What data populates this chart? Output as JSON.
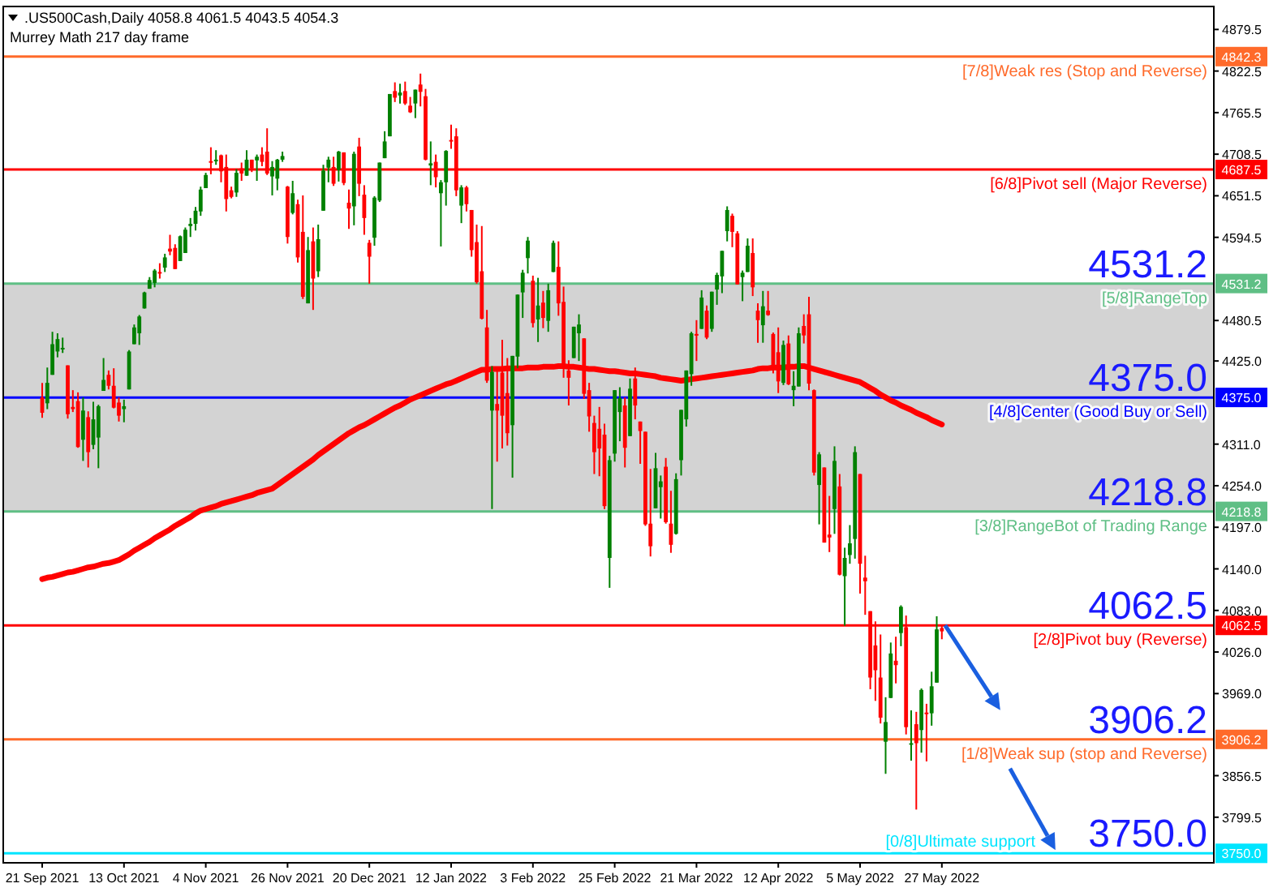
{
  "chart_data": {
    "type": "candlestick",
    "title": ".US500Cash,Daily 4058.8 4061.5 4043.5 4054.3",
    "subtitle": "Murrey Math 217 day frame",
    "categories": [
      "21 Sep 2021",
      null,
      null,
      null,
      null,
      null,
      null,
      null,
      null,
      null,
      null,
      null,
      null,
      null,
      null,
      null,
      "13 Oct 2021",
      null,
      null,
      null,
      null,
      null,
      null,
      null,
      null,
      null,
      null,
      null,
      null,
      null,
      null,
      null,
      "4 Nov 2021",
      null,
      null,
      null,
      null,
      null,
      null,
      null,
      null,
      null,
      null,
      null,
      null,
      null,
      null,
      null,
      "26 Nov 2021",
      null,
      null,
      null,
      null,
      null,
      null,
      null,
      null,
      null,
      null,
      null,
      null,
      null,
      null,
      null,
      "20 Dec 2021",
      null,
      null,
      null,
      null,
      null,
      null,
      null,
      null,
      null,
      null,
      null,
      null,
      null,
      null,
      null,
      "12 Jan 2022",
      null,
      null,
      null,
      null,
      null,
      null,
      null,
      null,
      null,
      null,
      null,
      null,
      null,
      null,
      null,
      "3 Feb 2022",
      null,
      null,
      null,
      null,
      null,
      null,
      null,
      null,
      null,
      null,
      null,
      null,
      null,
      null,
      null,
      "25 Feb 2022",
      null,
      null,
      null,
      null,
      null,
      null,
      null,
      null,
      null,
      null,
      null,
      null,
      null,
      null,
      null,
      "21 Mar 2022",
      null,
      null,
      null,
      null,
      null,
      null,
      null,
      null,
      null,
      null,
      null,
      null,
      null,
      null,
      null,
      "12 Apr 2022",
      null,
      null,
      null,
      null,
      null,
      null,
      null,
      null,
      null,
      null,
      null,
      null,
      null,
      null,
      null,
      "5 May 2022",
      null,
      null,
      null,
      null,
      null,
      null,
      null,
      null,
      null,
      null,
      null,
      null,
      null,
      null,
      null,
      "27 May 2022"
    ],
    "series": [
      {
        "type": "candlestick",
        "ohlc": [
          [
            4375,
            4395,
            4347,
            4354
          ],
          [
            4367,
            4416,
            4359,
            4395
          ],
          [
            4406,
            4465,
            4406,
            4448
          ],
          [
            4438,
            4463,
            4430,
            4455
          ],
          [
            4442,
            4457,
            4436,
            4443
          ],
          [
            4419,
            4419,
            4346,
            4352
          ],
          [
            4362,
            4385,
            4355,
            4359
          ],
          [
            4370,
            4382,
            4306,
            4307
          ],
          [
            4317,
            4375,
            4288,
            4357
          ],
          [
            4348,
            4356,
            4279,
            4300
          ],
          [
            4310,
            4369,
            4304,
            4345
          ],
          [
            4320,
            4365,
            4278,
            4363
          ],
          [
            4384,
            4429,
            4384,
            4399
          ],
          [
            4406,
            4412,
            4386,
            4391
          ],
          [
            4391,
            4415,
            4360,
            4361
          ],
          [
            4368,
            4375,
            4342,
            4350
          ],
          [
            4359,
            4372,
            4341,
            4363
          ],
          [
            4386,
            4440,
            4386,
            4438
          ],
          [
            4448,
            4475,
            4448,
            4471
          ],
          [
            4463,
            4488,
            4447,
            4486
          ],
          [
            4497,
            4520,
            4497,
            4519
          ],
          [
            4524,
            4540,
            4524,
            4536
          ],
          [
            4532,
            4551,
            4526,
            4549
          ],
          [
            4547,
            4559,
            4538,
            4545
          ],
          [
            4553,
            4572,
            4547,
            4567
          ],
          [
            4579,
            4598,
            4570,
            4575
          ],
          [
            4580,
            4585,
            4551,
            4551
          ],
          [
            4562,
            4597,
            4562,
            4596
          ],
          [
            4573,
            4608,
            4573,
            4605
          ],
          [
            4610,
            4621,
            4595,
            4613
          ],
          [
            4613,
            4636,
            4604,
            4631
          ],
          [
            4630,
            4664,
            4624,
            4660
          ],
          [
            4662,
            4683,
            4662,
            4680
          ],
          [
            4699,
            4718,
            4681,
            4697
          ],
          [
            4701,
            4714,
            4694,
            4701
          ],
          [
            4707,
            4708,
            4670,
            4685
          ],
          [
            4691,
            4708,
            4630,
            4647
          ],
          [
            4659,
            4664,
            4648,
            4650
          ],
          [
            4656,
            4688,
            4650,
            4683
          ],
          [
            4689,
            4697,
            4672,
            4682
          ],
          [
            4679,
            4714,
            4679,
            4701
          ],
          [
            4701,
            4701,
            4684,
            4689
          ],
          [
            4700,
            4708,
            4672,
            4705
          ],
          [
            4708,
            4718,
            4692,
            4698
          ],
          [
            4712,
            4744,
            4680,
            4682
          ],
          [
            4678,
            4699,
            4652,
            4691
          ],
          [
            4675,
            4702,
            4659,
            4701
          ],
          [
            4701,
            4712,
            4698,
            4706
          ],
          [
            4664,
            4665,
            4586,
            4595
          ],
          [
            4628,
            4672,
            4626,
            4655
          ],
          [
            4640,
            4646,
            4560,
            4567
          ],
          [
            4602,
            4652,
            4510,
            4513
          ],
          [
            4504,
            4595,
            4504,
            4577
          ],
          [
            4589,
            4608,
            4495,
            4538
          ],
          [
            4548,
            4612,
            4540,
            4592
          ],
          [
            4631,
            4694,
            4631,
            4686
          ],
          [
            4690,
            4705,
            4670,
            4701
          ],
          [
            4691,
            4705,
            4665,
            4668
          ],
          [
            4687,
            4713,
            4671,
            4712
          ],
          [
            4711,
            4711,
            4666,
            4669
          ],
          [
            4642,
            4660,
            4606,
            4634
          ],
          [
            4637,
            4712,
            4611,
            4709
          ],
          [
            4719,
            4731,
            4651,
            4668
          ],
          [
            4653,
            4666,
            4598,
            4621
          ],
          [
            4587,
            4591,
            4531,
            4568
          ],
          [
            4594,
            4651,
            4583,
            4649
          ],
          [
            4645,
            4697,
            4643,
            4697
          ],
          [
            4703,
            4740,
            4703,
            4726
          ],
          [
            4733,
            4791,
            4733,
            4791
          ],
          [
            4795,
            4807,
            4780,
            4786
          ],
          [
            4789,
            4805,
            4778,
            4793
          ],
          [
            4795,
            4808,
            4776,
            4778
          ],
          [
            4775,
            4787,
            4765,
            4766
          ],
          [
            4778,
            4797,
            4758,
            4797
          ],
          [
            4804,
            4819,
            4774,
            4794
          ],
          [
            4788,
            4798,
            4700,
            4701
          ],
          [
            4693,
            4726,
            4666,
            4696
          ],
          [
            4698,
            4708,
            4663,
            4677
          ],
          [
            4655,
            4673,
            4582,
            4670
          ],
          [
            4670,
            4714,
            4638,
            4713
          ],
          [
            4728,
            4749,
            4716,
            4726
          ],
          [
            4733,
            4744,
            4651,
            4659
          ],
          [
            4638,
            4666,
            4614,
            4663
          ],
          [
            4663,
            4665,
            4630,
            4640
          ],
          [
            4632,
            4632,
            4568,
            4577
          ],
          [
            4588,
            4612,
            4531,
            4533
          ],
          [
            4548,
            4610,
            4482,
            4483
          ],
          [
            4471,
            4495,
            4395,
            4398
          ],
          [
            4357,
            4418,
            4222,
            4410
          ],
          [
            4366,
            4411,
            4287,
            4357
          ],
          [
            4409,
            4454,
            4305,
            4350
          ],
          [
            4381,
            4429,
            4309,
            4326
          ],
          [
            4337,
            4432,
            4265,
            4432
          ],
          [
            4431,
            4516,
            4415,
            4516
          ],
          [
            4519,
            4550,
            4484,
            4546
          ],
          [
            4566,
            4595,
            4545,
            4590
          ],
          [
            4535,
            4542,
            4471,
            4477
          ],
          [
            4482,
            4539,
            4451,
            4501
          ],
          [
            4505,
            4521,
            4470,
            4484
          ],
          [
            4480,
            4531,
            4465,
            4522
          ],
          [
            4547,
            4590,
            4547,
            4587
          ],
          [
            4554,
            4589,
            4487,
            4504
          ],
          [
            4506,
            4527,
            4402,
            4419
          ],
          [
            4412,
            4426,
            4364,
            4402
          ],
          [
            4429,
            4472,
            4429,
            4472
          ],
          [
            4463,
            4489,
            4425,
            4475
          ],
          [
            4456,
            4456,
            4373,
            4380
          ],
          [
            4385,
            4395,
            4328,
            4349
          ],
          [
            4340,
            4350,
            4270,
            4300
          ],
          [
            4332,
            4362,
            4267,
            4305
          ],
          [
            4324,
            4339,
            4222,
            4226
          ],
          [
            4155,
            4295,
            4114,
            4289
          ],
          [
            4298,
            4385,
            4287,
            4385
          ],
          [
            4355,
            4389,
            4315,
            4374
          ],
          [
            4364,
            4375,
            4279,
            4306
          ],
          [
            4322,
            4401,
            4322,
            4387
          ],
          [
            4401,
            4416,
            4345,
            4364
          ],
          [
            4342,
            4342,
            4284,
            4329
          ],
          [
            4328,
            4328,
            4199,
            4201
          ],
          [
            4202,
            4277,
            4157,
            4171
          ],
          [
            4223,
            4299,
            4223,
            4278
          ],
          [
            4252,
            4268,
            4209,
            4260
          ],
          [
            4280,
            4292,
            4202,
            4204
          ],
          [
            4202,
            4247,
            4162,
            4173
          ],
          [
            4188,
            4271,
            4187,
            4263
          ],
          [
            4289,
            4358,
            4268,
            4358
          ],
          [
            4345,
            4412,
            4335,
            4412
          ],
          [
            4407,
            4465,
            4391,
            4463
          ],
          [
            4462,
            4481,
            4425,
            4461
          ],
          [
            4469,
            4522,
            4469,
            4512
          ],
          [
            4494,
            4501,
            4455,
            4457
          ],
          [
            4469,
            4520,
            4465,
            4520
          ],
          [
            4523,
            4546,
            4502,
            4543
          ],
          [
            4541,
            4576,
            4518,
            4576
          ],
          [
            4603,
            4637,
            4589,
            4632
          ],
          [
            4624,
            4627,
            4581,
            4602
          ],
          [
            4600,
            4603,
            4530,
            4530
          ],
          [
            4540,
            4549,
            4507,
            4546
          ],
          [
            4547,
            4593,
            4547,
            4583
          ],
          [
            4573,
            4593,
            4514,
            4526
          ],
          [
            4494,
            4504,
            4450,
            4481
          ],
          [
            4474,
            4521,
            4450,
            4500
          ],
          [
            4494,
            4521,
            4487,
            4488
          ],
          [
            4462,
            4464,
            4408,
            4413
          ],
          [
            4437,
            4471,
            4381,
            4397
          ],
          [
            4395,
            4453,
            4392,
            4447
          ],
          [
            4449,
            4460,
            4392,
            4393
          ],
          [
            4385,
            4411,
            4363,
            4391
          ],
          [
            4390,
            4471,
            4390,
            4463
          ],
          [
            4473,
            4489,
            4449,
            4460
          ],
          [
            4489,
            4513,
            4385,
            4394
          ],
          [
            4385,
            4386,
            4268,
            4272
          ],
          [
            4255,
            4300,
            4201,
            4297
          ],
          [
            4279,
            4279,
            4176,
            4176
          ],
          [
            4187,
            4240,
            4163,
            4183
          ],
          [
            4222,
            4308,
            4188,
            4288
          ],
          [
            4253,
            4270,
            4131,
            4132
          ],
          [
            4130,
            4169,
            4062,
            4155
          ],
          [
            4159,
            4200,
            4147,
            4175
          ],
          [
            4181,
            4308,
            4154,
            4300
          ],
          [
            4270,
            4270,
            4106,
            4147
          ],
          [
            4128,
            4158,
            4077,
            4123
          ],
          [
            4082,
            4082,
            3975,
            3991
          ],
          [
            4035,
            4068,
            3959,
            4001
          ],
          [
            3991,
            4050,
            3928,
            3936
          ],
          [
            3903,
            3964,
            3859,
            3930
          ],
          [
            3963,
            4039,
            3963,
            4024
          ],
          [
            4014,
            4047,
            3983,
            4008
          ],
          [
            4052,
            4090,
            4034,
            4088
          ],
          [
            4060,
            4076,
            3913,
            3923
          ],
          [
            3899,
            3946,
            3877,
            3901
          ],
          [
            3927,
            3944,
            3810,
            3901
          ],
          [
            3919,
            3976,
            3888,
            3974
          ],
          [
            3943,
            3955,
            3876,
            3941
          ],
          [
            3942,
            3999,
            3925,
            3979
          ],
          [
            3984,
            4075,
            3984,
            4057
          ],
          [
            4058.8,
            4061.5,
            4043.5,
            4054.3
          ]
        ]
      },
      {
        "type": "line",
        "color": "#ff0000",
        "values": [
          4126,
          4128,
          4129,
          4131,
          4133,
          4135,
          4136,
          4138,
          4140,
          4142,
          4143,
          4145,
          4147,
          4148,
          4150,
          4152,
          4156,
          4160,
          4165,
          4169,
          4173,
          4177,
          4182,
          4186,
          4190,
          4194,
          4199,
          4203,
          4207,
          4211,
          4216,
          4220,
          4222,
          4224,
          4226,
          4229,
          4231,
          4233,
          4235,
          4237,
          4239,
          4241,
          4244,
          4246,
          4248,
          4250,
          4255,
          4260,
          4265,
          4270,
          4275,
          4280,
          4285,
          4290,
          4296,
          4301,
          4306,
          4311,
          4316,
          4321,
          4326,
          4330,
          4334,
          4337,
          4341,
          4345,
          4349,
          4353,
          4357,
          4361,
          4364,
          4368,
          4372,
          4375,
          4378,
          4381,
          4384,
          4387,
          4390,
          4393,
          4395,
          4398,
          4401,
          4404,
          4407,
          4410,
          4413,
          4413,
          4414,
          4414,
          4414,
          4415,
          4415,
          4415,
          4415,
          4416,
          4416,
          4416,
          4417,
          4417,
          4417,
          4418,
          4418,
          4417,
          4417,
          4416,
          4415,
          4414,
          4414,
          4413,
          4412,
          4411,
          4411,
          4410,
          4409,
          4408,
          4408,
          4407,
          4406,
          4405,
          4404,
          4402,
          4401,
          4400,
          4399,
          4398,
          4399,
          4400,
          4401,
          4402,
          4403,
          4404,
          4405,
          4406,
          4407,
          4408,
          4409,
          4410,
          4411,
          4412,
          4414,
          4415,
          4415,
          4416,
          4416,
          4416,
          4417,
          4417,
          4418,
          4418,
          4416,
          4414,
          4412,
          4410,
          4408,
          4406,
          4404,
          4402,
          4400,
          4398,
          4396,
          4392,
          4388,
          4384,
          4379,
          4375,
          4371,
          4368,
          4364,
          4361,
          4358,
          4354,
          4351,
          4348,
          4344,
          4341,
          4338
        ]
      }
    ],
    "ylim": [
      3737,
      4911
    ],
    "yticks": [
      {
        "value": 4879.5,
        "label": "4879.5"
      },
      {
        "value": 4842.3,
        "label": "4842.3"
      },
      {
        "value": 4687.5,
        "label": "4687.5"
      },
      {
        "value": 4531.2,
        "label": "4531.2"
      },
      {
        "value": 4375.0,
        "label": "4375.0"
      },
      {
        "value": 4218.8,
        "label": "4218.8"
      },
      {
        "value": 4062.5,
        "label": "4062.5"
      },
      {
        "value": 3906.2,
        "label": "3906.2"
      },
      {
        "value": 3750.0,
        "label": "3750.0"
      },
      {
        "value": 4822.5,
        "label": "4822.5"
      },
      {
        "value": 4765.5,
        "label": "4765.5"
      },
      {
        "value": 4708.5,
        "label": "4708.5"
      },
      {
        "value": 4651.5,
        "label": "4651.5"
      },
      {
        "value": 4594.5,
        "label": "4594.5"
      },
      {
        "value": 4480.5,
        "label": "4480.5"
      },
      {
        "value": 4425,
        "label": "4425.0"
      },
      {
        "value": 4311,
        "label": "4311.0"
      },
      {
        "value": 4254,
        "label": "4254.0"
      },
      {
        "value": 4197,
        "label": "4197.0"
      },
      {
        "value": 4140,
        "label": "4140.0"
      },
      {
        "value": 4083,
        "label": "4083.0"
      },
      {
        "value": 4026,
        "label": "4026.0"
      },
      {
        "value": 3969,
        "label": "3969.0"
      },
      {
        "value": 3856.5,
        "label": "3856.5"
      },
      {
        "value": 3799.5,
        "label": "3799.5"
      }
    ],
    "bands": [
      {
        "axis": "y",
        "from": 4218.8,
        "to": 4531.2,
        "color": "#d3d3d3"
      }
    ],
    "ref_lines": [
      {
        "axis": "y",
        "value": 4842.3,
        "label": "[7/8]Weak res (Stop and Reverse)",
        "color": "#ff6a2a"
      },
      {
        "axis": "y",
        "value": 4687.5,
        "label": "[6/8]Pivot sell (Major Reverse)",
        "color": "#ff0000"
      },
      {
        "axis": "y",
        "value": 4531.2,
        "label": "[5/8]RangeTop",
        "color": "#5fbf85"
      },
      {
        "axis": "y",
        "value": 4375.0,
        "label": "[4/8]Center (Good Buy or Sell)",
        "color": "#0000ff"
      },
      {
        "axis": "y",
        "value": 4218.8,
        "label": "[3/8]RangeBot of Trading Range",
        "color": "#5fbf85"
      },
      {
        "axis": "y",
        "value": 4062.5,
        "label": "[2/8]Pivot buy (Reverse)",
        "color": "#ff0000"
      },
      {
        "axis": "y",
        "value": 3906.2,
        "label": "[1/8]Weak sup (stop and Reverse)",
        "color": "#ff6a2a"
      },
      {
        "axis": "y",
        "value": 3750.0,
        "label": "[0/8]Ultimate support",
        "color": "#00e5ff"
      }
    ],
    "annotations": [
      {
        "text": "4531.2",
        "y": 4531.2
      },
      {
        "text": "4375.0",
        "y": 4375.0
      },
      {
        "text": "4218.8",
        "y": 4218.8
      },
      {
        "text": "4062.5",
        "y": 4062.5
      },
      {
        "text": "3906.2",
        "y": 3906.2
      },
      {
        "text": "3750.0",
        "y": 3750.0
      }
    ]
  }
}
